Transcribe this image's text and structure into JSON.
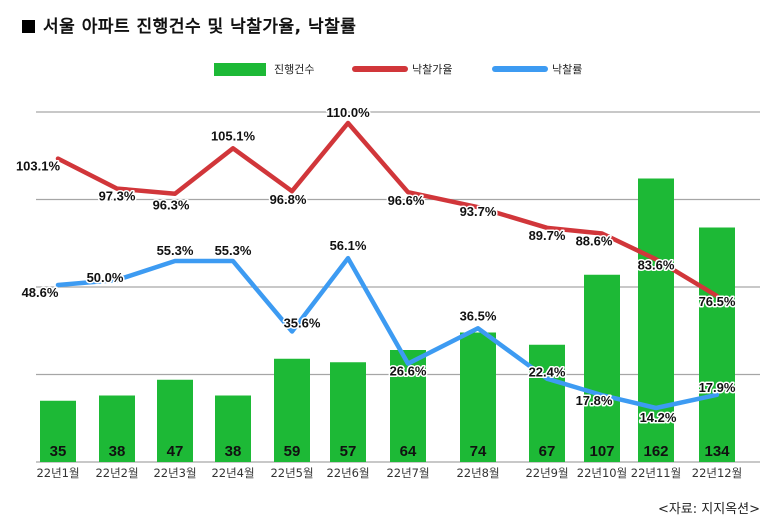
{
  "title": "서울 아파트 진행건수 및 낙찰가율, 낙찰률",
  "source": "<자료: 지지옥션>",
  "chart_data": {
    "type": "bar+line",
    "title": "서울 아파트 진행건수 및 낙찰가율, 낙찰률",
    "categories": [
      "22년1월",
      "22년2월",
      "22년3월",
      "22년4월",
      "22년5월",
      "22년6월",
      "22년7월",
      "22년8월",
      "22년9월",
      "22년10월",
      "22년11월",
      "22년12월"
    ],
    "series": [
      {
        "name": "진행건수",
        "type": "bar",
        "color": "#1db936",
        "values": [
          35,
          38,
          47,
          38,
          59,
          57,
          64,
          74,
          67,
          107,
          162,
          134
        ],
        "labels": [
          "35",
          "38",
          "47",
          "38",
          "59",
          "57",
          "64",
          "74",
          "67",
          "107",
          "162",
          "134"
        ]
      },
      {
        "name": "낙찰가율",
        "type": "line",
        "color": "#d1363a",
        "values": [
          103.1,
          97.3,
          96.3,
          105.1,
          96.8,
          110.0,
          96.6,
          93.7,
          89.7,
          88.6,
          83.6,
          76.5
        ],
        "labels": [
          "103.1%",
          "97.3%",
          "96.3%",
          "105.1%",
          "96.8%",
          "110.0%",
          "96.6%",
          "93.7%",
          "89.7%",
          "88.6%",
          "83.6%",
          "76.5%"
        ]
      },
      {
        "name": "낙찰률",
        "type": "line",
        "color": "#3d9bf2",
        "values": [
          48.6,
          50.0,
          55.3,
          55.3,
          35.6,
          56.1,
          26.6,
          36.5,
          22.4,
          17.8,
          14.2,
          17.9
        ],
        "labels": [
          "48.6%",
          "50.0%",
          "55.3%",
          "55.3%",
          "35.6%",
          "56.1%",
          "26.6%",
          "36.5%",
          "22.4%",
          "17.8%",
          "14.2%",
          "17.9%"
        ]
      }
    ],
    "bar_ylim": [
      0,
      200
    ],
    "grid": true,
    "legend": "top-center"
  },
  "colors": {
    "bar": "#1db936",
    "red_line": "#d1363a",
    "blue_line": "#3d9bf2",
    "grid": "#a6a6a6"
  }
}
